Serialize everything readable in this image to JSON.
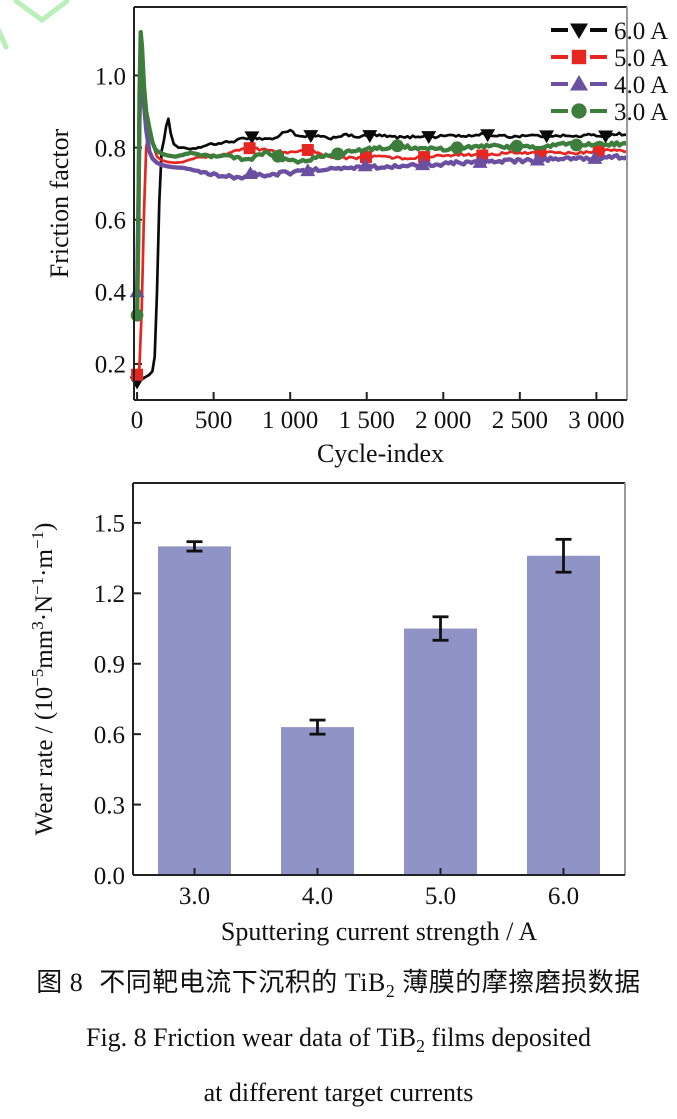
{
  "page": {
    "background": "#ffffff"
  },
  "watermark": {
    "color": "#b9efb9",
    "shape": "chevron-v"
  },
  "chart_data": [
    {
      "type": "line",
      "title": "",
      "xlabel": "Cycle-index",
      "ylabel": "Friction factor",
      "xlim": [
        0,
        3200
      ],
      "ylim": [
        0.1,
        1.19
      ],
      "grid": false,
      "legend_position": "upper right",
      "xticks": {
        "values": [
          0,
          500,
          1000,
          1500,
          2000,
          2500,
          3000
        ],
        "labels": [
          "0",
          "500",
          "1 000",
          "1 500",
          "2 000",
          "2 500",
          "3 000"
        ]
      },
      "yticks": {
        "values": [
          0.2,
          0.4,
          0.6,
          0.8,
          1.0
        ],
        "labels": [
          "0.2",
          "0.4",
          "0.6",
          "0.8",
          "1.0"
        ]
      },
      "series": [
        {
          "name": "6.0 A",
          "color": "#0a0a0a",
          "marker": "triangle-down",
          "line_width": 2.7,
          "noise": 0.0035,
          "marker_first": true,
          "marker_from": 750,
          "marker_step": 385,
          "x": [
            0,
            40,
            80,
            100,
            115,
            130,
            145,
            160,
            175,
            190,
            205,
            220,
            240,
            270,
            300,
            350,
            400,
            450,
            500,
            600,
            700,
            750,
            800,
            900,
            950,
            1000,
            1050,
            1100,
            1150,
            1250,
            1350,
            1450,
            1550,
            1650,
            1750,
            1850,
            1950,
            2050,
            2150,
            2250,
            2350,
            2450,
            2550,
            2650,
            2750,
            2850,
            2950,
            3050,
            3150,
            3200
          ],
          "y": [
            0.15,
            0.16,
            0.17,
            0.18,
            0.22,
            0.4,
            0.65,
            0.79,
            0.82,
            0.86,
            0.88,
            0.84,
            0.81,
            0.8,
            0.8,
            0.795,
            0.8,
            0.805,
            0.81,
            0.815,
            0.825,
            0.83,
            0.825,
            0.825,
            0.84,
            0.85,
            0.83,
            0.83,
            0.835,
            0.825,
            0.835,
            0.83,
            0.835,
            0.83,
            0.828,
            0.832,
            0.83,
            0.835,
            0.83,
            0.838,
            0.833,
            0.83,
            0.835,
            0.832,
            0.835,
            0.83,
            0.835,
            0.832,
            0.838,
            0.835
          ]
        },
        {
          "name": "5.0 A",
          "color": "#e62620",
          "marker": "square",
          "line_width": 2.7,
          "noise": 0.0035,
          "marker_first": true,
          "marker_from": 735,
          "marker_step": 380,
          "x": [
            0,
            15,
            30,
            45,
            60,
            75,
            90,
            110,
            130,
            160,
            200,
            250,
            300,
            350,
            400,
            500,
            600,
            700,
            750,
            800,
            900,
            1000,
            1100,
            1150,
            1250,
            1350,
            1450,
            1550,
            1650,
            1750,
            1850,
            1950,
            2050,
            2150,
            2250,
            2350,
            2450,
            2550,
            2650,
            2750,
            2850,
            2950,
            3050,
            3150,
            3200
          ],
          "y": [
            0.17,
            0.19,
            0.35,
            0.62,
            0.8,
            0.84,
            0.83,
            0.8,
            0.775,
            0.765,
            0.76,
            0.758,
            0.76,
            0.768,
            0.772,
            0.778,
            0.785,
            0.795,
            0.8,
            0.795,
            0.79,
            0.787,
            0.795,
            0.79,
            0.775,
            0.77,
            0.772,
            0.776,
            0.774,
            0.77,
            0.773,
            0.776,
            0.778,
            0.782,
            0.778,
            0.782,
            0.787,
            0.784,
            0.787,
            0.787,
            0.784,
            0.787,
            0.792,
            0.794,
            0.79
          ]
        },
        {
          "name": "4.0 A",
          "color": "#6b4fa1",
          "marker": "triangle-up",
          "line_width": 4.3,
          "noise": 0.005,
          "marker_first": true,
          "marker_from": 740,
          "marker_step": 375,
          "x": [
            0,
            8,
            16,
            24,
            32,
            45,
            60,
            80,
            100,
            130,
            160,
            200,
            250,
            300,
            350,
            400,
            450,
            500,
            550,
            600,
            650,
            700,
            750,
            800,
            850,
            900,
            950,
            1000,
            1100,
            1200,
            1300,
            1400,
            1500,
            1600,
            1700,
            1800,
            1900,
            2000,
            2100,
            2200,
            2300,
            2400,
            2500,
            2600,
            2700,
            2800,
            2900,
            3000,
            3100,
            3200
          ],
          "y": [
            0.4,
            0.62,
            0.88,
            1.0,
            0.99,
            0.92,
            0.85,
            0.79,
            0.77,
            0.758,
            0.752,
            0.748,
            0.745,
            0.744,
            0.74,
            0.734,
            0.728,
            0.724,
            0.72,
            0.72,
            0.716,
            0.72,
            0.73,
            0.726,
            0.72,
            0.724,
            0.73,
            0.73,
            0.735,
            0.74,
            0.74,
            0.744,
            0.75,
            0.745,
            0.75,
            0.75,
            0.754,
            0.754,
            0.758,
            0.758,
            0.76,
            0.763,
            0.763,
            0.765,
            0.768,
            0.768,
            0.77,
            0.77,
            0.774,
            0.774
          ]
        },
        {
          "name": "3.0 A",
          "color": "#3e7e3c",
          "marker": "circle",
          "line_width": 4.3,
          "noise": 0.005,
          "marker_first": true,
          "marker_from": 920,
          "marker_step": 390,
          "x": [
            0,
            8,
            16,
            24,
            32,
            45,
            60,
            80,
            100,
            120,
            140,
            170,
            200,
            250,
            300,
            350,
            400,
            450,
            500,
            550,
            600,
            650,
            700,
            750,
            800,
            850,
            900,
            950,
            1000,
            1050,
            1100,
            1150,
            1200,
            1300,
            1400,
            1500,
            1600,
            1700,
            1800,
            1900,
            2000,
            2100,
            2200,
            2300,
            2400,
            2500,
            2600,
            2700,
            2800,
            2900,
            3000,
            3100,
            3200
          ],
          "y": [
            0.335,
            0.55,
            0.95,
            1.12,
            1.08,
            0.97,
            0.9,
            0.855,
            0.815,
            0.795,
            0.788,
            0.782,
            0.778,
            0.775,
            0.78,
            0.785,
            0.78,
            0.776,
            0.775,
            0.78,
            0.776,
            0.77,
            0.765,
            0.77,
            0.78,
            0.785,
            0.78,
            0.77,
            0.765,
            0.76,
            0.765,
            0.77,
            0.776,
            0.782,
            0.79,
            0.795,
            0.8,
            0.805,
            0.8,
            0.8,
            0.796,
            0.8,
            0.8,
            0.805,
            0.8,
            0.805,
            0.8,
            0.805,
            0.81,
            0.806,
            0.81,
            0.81,
            0.81
          ]
        }
      ]
    },
    {
      "type": "bar",
      "title": "",
      "xlabel": "Sputtering current strength / A",
      "ylabel": "Wear rate / (10⁻⁵mm³·N⁻¹·m⁻¹)",
      "ylabel_parts": [
        {
          "t": "Wear rate / (10"
        },
        {
          "t": "−5",
          "sup": true
        },
        {
          "t": "mm"
        },
        {
          "t": "3",
          "sup": true
        },
        {
          "t": "·N"
        },
        {
          "t": "−1",
          "sup": true
        },
        {
          "t": "·m"
        },
        {
          "t": "−1",
          "sup": true
        },
        {
          "t": ")"
        }
      ],
      "categories": [
        "3.0",
        "4.0",
        "5.0",
        "6.0"
      ],
      "values": [
        1.4,
        0.63,
        1.05,
        1.36
      ],
      "errors": [
        0.02,
        0.03,
        0.05,
        0.07
      ],
      "bar_color": "#9093c5",
      "error_color": "#111111",
      "ylim": [
        0,
        1.67
      ],
      "grid": false,
      "yticks": {
        "values": [
          0.0,
          0.3,
          0.6,
          0.9,
          1.2,
          1.5
        ],
        "labels": [
          "0.0",
          "0.3",
          "0.6",
          "0.9",
          "1.2",
          "1.5"
        ]
      }
    }
  ],
  "caption": {
    "zh_prefix": "图 8",
    "zh_part1": "不同靶电流下沉积的 TiB",
    "zh_sub": "2",
    "zh_part2": " 薄膜的摩擦磨损数据",
    "en_part1": "Fig. 8 Friction wear data of TiB",
    "en_sub": "2",
    "en_part2": " films deposited",
    "en_line2": "at different target currents"
  }
}
